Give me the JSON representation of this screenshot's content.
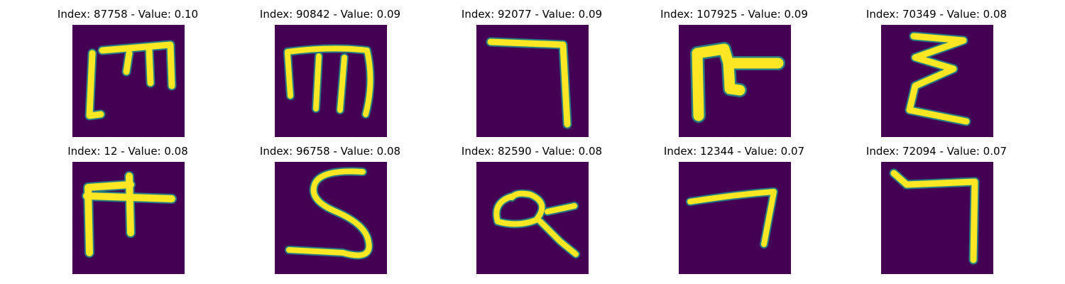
{
  "panels": [
    {
      "title": "Index: 87758 - Value: 0.10",
      "glyph": "m-bracket-glyph"
    },
    {
      "title": "Index: 90842 - Value: 0.09",
      "glyph": "m-loop-glyph"
    },
    {
      "title": "Index: 92077 - Value: 0.09",
      "glyph": "seven-angle-glyph"
    },
    {
      "title": "Index: 107925 - Value: 0.09",
      "glyph": "m-blob-glyph"
    },
    {
      "title": "Index: 70349 - Value: 0.08",
      "glyph": "epsilon-glyph"
    },
    {
      "title": "Index: 12 - Value: 0.08",
      "glyph": "m-cross-glyph"
    },
    {
      "title": "Index: 96758 - Value: 0.08",
      "glyph": "s-curve-glyph"
    },
    {
      "title": "Index: 82590 - Value: 0.08",
      "glyph": "alpha-loop-glyph"
    },
    {
      "title": "Index: 12344 - Value: 0.07",
      "glyph": "seven-hook-glyph"
    },
    {
      "title": "Index: 72094 - Value: 0.07",
      "glyph": "seven-bracket-glyph"
    }
  ],
  "colors": {
    "background": "#440154",
    "stroke": "#fde725",
    "halo": "#21918c"
  }
}
